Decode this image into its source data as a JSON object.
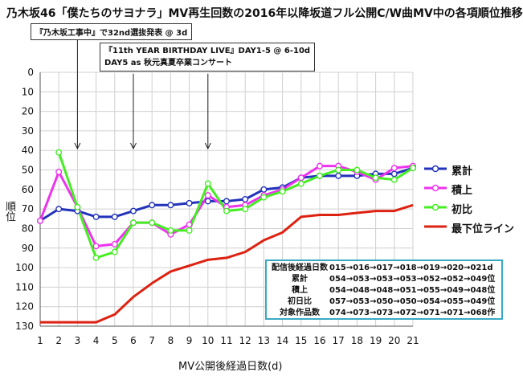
{
  "title": "乃木坂46「僕たちのサヨナラ」MV再生回数の2016年以降坂道フル公開C/W曲MV中の各項順位推移",
  "notes": [
    {
      "text": "『乃木坂工事中』で32nd選抜発表 @ 3d",
      "day": 3
    },
    {
      "lines": [
        "『11th YEAR BIRTHDAY LIVE』DAY1-5 @ 6-10d",
        "DAY5 as 秋元真夏卒業コンサート"
      ],
      "days": [
        6,
        10
      ]
    }
  ],
  "table": {
    "rows": [
      {
        "label": "配信後経過日数",
        "value": "015→016→017→018→019→020→021d"
      },
      {
        "label": "累計",
        "value": "054→053→053→053→052→052→049位"
      },
      {
        "label": "積上",
        "value": "054→048→048→051→055→049→048位"
      },
      {
        "label": "初日比",
        "value": "057→053→050→050→054→055→049位"
      },
      {
        "label": "対象作品数",
        "value": "074→073→073→072→071→071→068作"
      }
    ]
  },
  "chart_data": {
    "type": "line",
    "title": "乃木坂46「僕たちのサヨナラ」MV再生回数の2016年以降坂道フル公開C/W曲MV中の各項順位推移",
    "xlabel": "MV公開後経過日数(d)",
    "ylabel": "順位",
    "x": [
      1,
      2,
      3,
      4,
      5,
      6,
      7,
      8,
      9,
      10,
      11,
      12,
      13,
      14,
      15,
      16,
      17,
      18,
      19,
      20,
      21
    ],
    "xlim": [
      1,
      21
    ],
    "ylim": [
      130,
      0
    ],
    "y_inverted": true,
    "yticks": [
      0,
      10,
      20,
      30,
      40,
      50,
      60,
      70,
      80,
      90,
      100,
      110,
      120,
      130
    ],
    "grid": true,
    "legend_position": "right",
    "series": [
      {
        "name": "累計",
        "color": "#2233bb",
        "marker": true,
        "values": [
          76,
          70,
          71,
          74,
          74,
          71,
          68,
          68,
          67,
          66,
          66,
          65,
          60,
          59,
          54,
          53,
          53,
          53,
          52,
          52,
          49
        ]
      },
      {
        "name": "積上",
        "color": "#ee33ee",
        "marker": true,
        "values": [
          76,
          51,
          69,
          89,
          88,
          77,
          77,
          83,
          78,
          63,
          69,
          68,
          63,
          60,
          54,
          48,
          48,
          51,
          55,
          49,
          48
        ]
      },
      {
        "name": "初比",
        "color": "#44ee22",
        "marker": true,
        "values": [
          null,
          41,
          69,
          95,
          92,
          77,
          77,
          81,
          81,
          57,
          71,
          70,
          64,
          61,
          57,
          53,
          50,
          50,
          54,
          55,
          49
        ]
      },
      {
        "name": "最下位ライン",
        "color": "#dd2211",
        "marker": false,
        "values": [
          128,
          128,
          128,
          128,
          124,
          115,
          108,
          102,
          99,
          96,
          95,
          92,
          86,
          82,
          74,
          73,
          73,
          72,
          71,
          71,
          68
        ]
      }
    ]
  }
}
